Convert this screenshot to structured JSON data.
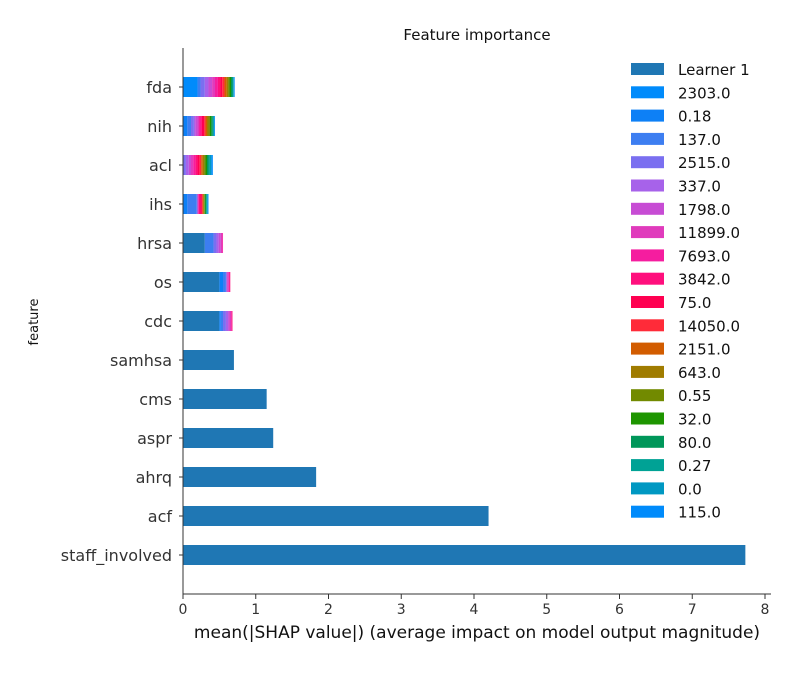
{
  "chart_data": {
    "type": "bar",
    "orientation": "horizontal",
    "stacked": true,
    "title": "Feature importance",
    "xlabel": "mean(|SHAP value|) (average impact on model output magnitude)",
    "ylabel": "feature",
    "xlim": [
      0,
      8.1
    ],
    "xticks": [
      0,
      1,
      2,
      3,
      4,
      5,
      6,
      7,
      8
    ],
    "grid": false,
    "legend_position": "top-right",
    "categories": [
      "fda",
      "nih",
      "acl",
      "ihs",
      "hrsa",
      "os",
      "cdc",
      "samhsa",
      "cms",
      "aspr",
      "ahrq",
      "acf",
      "staff_involved"
    ],
    "series": [
      {
        "name": "Learner 1",
        "color": "#1f77b4",
        "values": [
          0,
          0,
          0,
          0,
          0.3,
          0.5,
          0.5,
          0.7,
          1.15,
          1.24,
          1.83,
          4.2,
          7.73
        ]
      },
      {
        "name": "2303.0",
        "color": "#008bfb",
        "values": [
          0.2,
          0,
          0,
          0,
          0,
          0,
          0,
          0,
          0,
          0,
          0,
          0,
          0
        ]
      },
      {
        "name": "0.18",
        "color": "#0d80f6",
        "values": [
          0,
          0.06,
          0,
          0.06,
          0,
          0.05,
          0.02,
          0,
          0,
          0,
          0,
          0,
          0
        ]
      },
      {
        "name": "137.0",
        "color": "#3d7ef1",
        "values": [
          0.04,
          0.05,
          0,
          0.13,
          0.12,
          0.04,
          0.03,
          0,
          0,
          0,
          0,
          0,
          0
        ]
      },
      {
        "name": "2515.0",
        "color": "#7a6ff0",
        "values": [
          0.06,
          0.04,
          0.04,
          0.01,
          0.04,
          0.01,
          0.04,
          0,
          0,
          0,
          0,
          0,
          0
        ]
      },
      {
        "name": "337.0",
        "color": "#a762ea",
        "values": [
          0.05,
          0.02,
          0.04,
          0,
          0.03,
          0,
          0.03,
          0,
          0,
          0,
          0,
          0,
          0
        ]
      },
      {
        "name": "1798.0",
        "color": "#c74cd4",
        "values": [
          0.05,
          0.03,
          0.03,
          0,
          0.03,
          0.01,
          0.02,
          0,
          0,
          0,
          0,
          0,
          0
        ]
      },
      {
        "name": "11899.0",
        "color": "#e03bbc",
        "values": [
          0.04,
          0.02,
          0.03,
          0.01,
          0.02,
          0.02,
          0.02,
          0,
          0,
          0,
          0,
          0,
          0
        ]
      },
      {
        "name": "7693.0",
        "color": "#f51d9f",
        "values": [
          0.04,
          0.02,
          0.03,
          0.01,
          0.01,
          0.01,
          0.01,
          0,
          0,
          0,
          0,
          0,
          0
        ]
      },
      {
        "name": "3842.0",
        "color": "#ff0f7d",
        "values": [
          0.03,
          0.02,
          0.03,
          0.02,
          0,
          0.01,
          0.01,
          0,
          0,
          0,
          0,
          0,
          0
        ]
      },
      {
        "name": "75.0",
        "color": "#ff0051",
        "values": [
          0.03,
          0.03,
          0.03,
          0.02,
          0,
          0,
          0,
          0,
          0,
          0,
          0,
          0,
          0
        ]
      },
      {
        "name": "14050.0",
        "color": "#ff2b39",
        "values": [
          0.03,
          0.02,
          0.02,
          0.01,
          0,
          0,
          0,
          0,
          0,
          0,
          0,
          0,
          0
        ]
      },
      {
        "name": "2151.0",
        "color": "#d25c00",
        "values": [
          0.03,
          0.02,
          0.02,
          0.01,
          0,
          0,
          0,
          0,
          0,
          0,
          0,
          0,
          0
        ]
      },
      {
        "name": "643.0",
        "color": "#a07c00",
        "values": [
          0.02,
          0.02,
          0.02,
          0.01,
          0,
          0,
          0,
          0,
          0,
          0,
          0,
          0,
          0
        ]
      },
      {
        "name": "0.55",
        "color": "#728a00",
        "values": [
          0.02,
          0.02,
          0.02,
          0.01,
          0,
          0,
          0,
          0,
          0,
          0,
          0,
          0,
          0
        ]
      },
      {
        "name": "32.0",
        "color": "#1e9500",
        "values": [
          0.02,
          0.02,
          0.02,
          0.01,
          0,
          0,
          0,
          0,
          0,
          0,
          0,
          0,
          0
        ]
      },
      {
        "name": "80.0",
        "color": "#00975a",
        "values": [
          0.02,
          0.02,
          0.02,
          0.01,
          0,
          0,
          0,
          0,
          0,
          0,
          0,
          0,
          0
        ]
      },
      {
        "name": "0.27",
        "color": "#00a295",
        "values": [
          0.01,
          0.01,
          0.02,
          0.01,
          0,
          0,
          0,
          0,
          0,
          0,
          0,
          0,
          0
        ]
      },
      {
        "name": "0.0",
        "color": "#0098c2",
        "values": [
          0.01,
          0.01,
          0.02,
          0.01,
          0,
          0,
          0,
          0,
          0,
          0,
          0,
          0,
          0
        ]
      },
      {
        "name": "115.0",
        "color": "#008bfb",
        "values": [
          0.01,
          0.01,
          0.02,
          0.01,
          0,
          0,
          0,
          0,
          0,
          0,
          0,
          0,
          0
        ]
      }
    ]
  }
}
